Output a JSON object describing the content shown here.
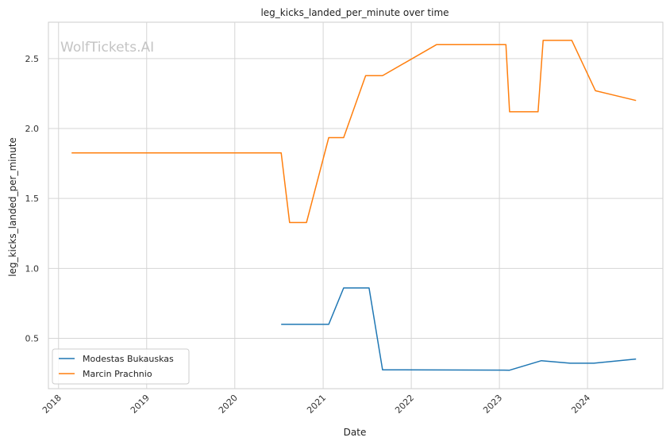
{
  "chart_data": {
    "type": "line",
    "title": "leg_kicks_landed_per_minute over time",
    "xlabel": "Date",
    "ylabel": "leg_kicks_landed_per_minute",
    "watermark": "WolfTickets.AI",
    "xlim": [
      "2017-11-20",
      "2024-11-08"
    ],
    "ylim": [
      0.14,
      2.76
    ],
    "x_ticks": [
      "2018-01-01",
      "2019-01-01",
      "2020-01-01",
      "2021-01-01",
      "2022-01-01",
      "2023-01-01",
      "2024-01-01"
    ],
    "x_tick_labels": [
      "2018",
      "2019",
      "2020",
      "2021",
      "2022",
      "2023",
      "2024"
    ],
    "y_ticks": [
      0.5,
      1.0,
      1.5,
      2.0,
      2.5
    ],
    "y_tick_labels": [
      "0.5",
      "1.0",
      "1.5",
      "2.0",
      "2.5"
    ],
    "grid": true,
    "legend_position": "lower-left",
    "series": [
      {
        "name": "Modestas Bukauskas",
        "color": "#1f77b4",
        "points": [
          [
            "2020-07-11",
            0.6
          ],
          [
            "2021-01-24",
            0.6
          ],
          [
            "2021-03-27",
            0.86
          ],
          [
            "2021-07-10",
            0.86
          ],
          [
            "2021-09-04",
            0.275
          ],
          [
            "2023-02-12",
            0.272
          ],
          [
            "2023-06-24",
            0.34
          ],
          [
            "2023-10-21",
            0.322
          ],
          [
            "2024-01-27",
            0.322
          ],
          [
            "2024-07-20",
            0.352
          ]
        ]
      },
      {
        "name": "Marcin Prachnio",
        "color": "#ff7f0e",
        "points": [
          [
            "2018-02-24",
            1.826
          ],
          [
            "2020-07-11",
            1.826
          ],
          [
            "2020-08-15",
            1.328
          ],
          [
            "2020-10-24",
            1.328
          ],
          [
            "2021-01-24",
            1.935
          ],
          [
            "2021-03-27",
            1.935
          ],
          [
            "2021-06-26",
            2.378
          ],
          [
            "2021-09-04",
            2.378
          ],
          [
            "2022-04-16",
            2.6
          ],
          [
            "2023-01-28",
            2.6
          ],
          [
            "2023-02-12",
            2.12
          ],
          [
            "2023-06-10",
            2.12
          ],
          [
            "2023-07-01",
            2.63
          ],
          [
            "2023-10-28",
            2.63
          ],
          [
            "2024-02-03",
            2.27
          ],
          [
            "2024-07-20",
            2.2
          ]
        ]
      }
    ]
  }
}
